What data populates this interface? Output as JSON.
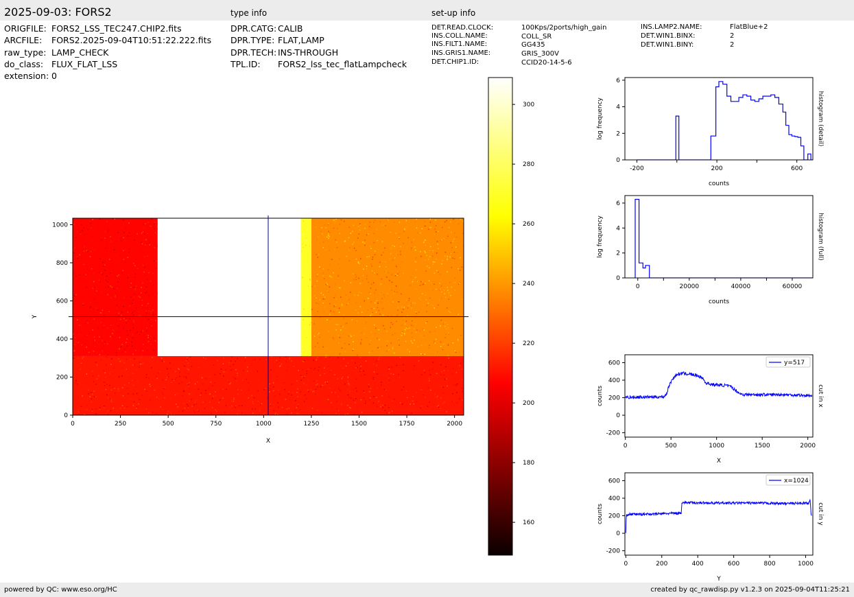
{
  "header": {
    "title": "2025-09-03: FORS2",
    "type_info_label": "type info",
    "setup_info_label": "set-up info"
  },
  "file_info": [
    {
      "key": "ORIGFILE:",
      "value": "FORS2_LSS_TEC247.CHIP2.fits"
    },
    {
      "key": "ARCFILE:",
      "value": "FORS2.2025-09-04T10:51:22.222.fits"
    },
    {
      "key": "raw_type:",
      "value": "LAMP_CHECK"
    },
    {
      "key": "do_class:",
      "value": "FLUX_FLAT_LSS"
    },
    {
      "key": "extension:",
      "value": "0"
    }
  ],
  "type_info": [
    {
      "key": "DPR.CATG:",
      "value": "CALIB"
    },
    {
      "key": "DPR.TYPE:",
      "value": "FLAT,LAMP"
    },
    {
      "key": "DPR.TECH:",
      "value": "INS-THROUGH"
    },
    {
      "key": "TPL.ID:",
      "value": "FORS2_lss_tec_flatLampcheck"
    }
  ],
  "setup_info_col1": [
    {
      "key": "DET.READ.CLOCK:",
      "value": "100Kps/2ports/high_gain"
    },
    {
      "key": "INS.COLL.NAME:",
      "value": "COLL_SR"
    },
    {
      "key": "INS.FILT1.NAME:",
      "value": "GG435"
    },
    {
      "key": "INS.GRIS1.NAME:",
      "value": "GRIS_300V"
    },
    {
      "key": "DET.CHIP1.ID:",
      "value": "CCID20-14-5-6"
    }
  ],
  "setup_info_col2": [
    {
      "key": "INS.LAMP2.NAME:",
      "value": "FlatBlue+2"
    },
    {
      "key": "DET.WIN1.BINX:",
      "value": "2"
    },
    {
      "key": "DET.WIN1.BINY:",
      "value": "2"
    }
  ],
  "footer": {
    "left": "powered by QC: www.eso.org/HC",
    "right": "created by qc_rawdisp.py v1.2.3 on 2025-09-04T11:25:21"
  },
  "colors": {
    "bar_bg": "#ececec",
    "line": "#0000ff",
    "crosshair": "#00008b"
  },
  "chart_data": [
    {
      "type": "heatmap",
      "name": "image",
      "colormap": "hot",
      "xlabel": "X",
      "ylabel": "Y",
      "xlim": [
        0,
        2048
      ],
      "ylim": [
        0,
        1034
      ],
      "xticks": [
        0,
        250,
        500,
        750,
        1000,
        1250,
        1500,
        1750,
        2000
      ],
      "yticks": [
        0,
        200,
        400,
        600,
        800,
        1000
      ],
      "crosshair": {
        "x": 1024,
        "y": 517
      },
      "regions": [
        {
          "x0": 0,
          "x1": 445,
          "y0": 310,
          "y1": 1034,
          "level": 208
        },
        {
          "x0": 445,
          "x1": 1195,
          "y0": 310,
          "y1": 1034,
          "level": 400
        },
        {
          "x0": 1195,
          "x1": 1250,
          "y0": 310,
          "y1": 1034,
          "level": 270
        },
        {
          "x0": 1250,
          "x1": 2048,
          "y0": 310,
          "y1": 1034,
          "level": 238
        },
        {
          "x0": 0,
          "x1": 2048,
          "y0": 0,
          "y1": 310,
          "level": 212
        }
      ]
    },
    {
      "type": "colorbar",
      "name": "colorbar",
      "range": [
        149,
        309
      ],
      "ticks": [
        160,
        180,
        200,
        220,
        240,
        260,
        280,
        300
      ]
    },
    {
      "type": "line",
      "name": "histogram-detail",
      "title": "histogram (detail)",
      "xlabel": "counts",
      "ylabel": "log frequency",
      "xlim": [
        -260,
        680
      ],
      "ylim": [
        0,
        6.2
      ],
      "xticks": [
        -200,
        0,
        200,
        400,
        600
      ],
      "xticklabels": [
        "-200",
        "",
        "200",
        "",
        "600"
      ],
      "yticks": [
        0,
        2,
        4,
        6
      ],
      "steps": [
        [
          -200,
          0
        ],
        [
          -5,
          3.3
        ],
        [
          10,
          0
        ],
        [
          170,
          1.8
        ],
        [
          195,
          5.5
        ],
        [
          210,
          5.9
        ],
        [
          230,
          5.7
        ],
        [
          250,
          4.8
        ],
        [
          270,
          4.4
        ],
        [
          290,
          4.4
        ],
        [
          310,
          4.7
        ],
        [
          330,
          4.9
        ],
        [
          350,
          4.8
        ],
        [
          370,
          4.5
        ],
        [
          390,
          4.4
        ],
        [
          410,
          4.6
        ],
        [
          430,
          4.8
        ],
        [
          450,
          4.8
        ],
        [
          470,
          4.9
        ],
        [
          490,
          4.7
        ],
        [
          510,
          4.2
        ],
        [
          530,
          3.6
        ],
        [
          545,
          2.6
        ],
        [
          560,
          1.9
        ],
        [
          575,
          1.8
        ],
        [
          590,
          1.75
        ],
        [
          605,
          1.7
        ],
        [
          620,
          1.05
        ],
        [
          635,
          0
        ],
        [
          655,
          0.45
        ],
        [
          670,
          0
        ],
        [
          685,
          1.6
        ]
      ]
    },
    {
      "type": "line",
      "name": "histogram-full",
      "title": "histogram (full)",
      "xlabel": "counts",
      "ylabel": "log frequency",
      "xlim": [
        -5000,
        68000
      ],
      "ylim": [
        0,
        6.6
      ],
      "xticks": [
        0,
        10000,
        20000,
        30000,
        40000,
        50000,
        60000
      ],
      "xticklabels": [
        "0",
        "",
        "20000",
        "",
        "40000",
        "",
        "60000"
      ],
      "yticks": [
        0,
        2,
        4,
        6
      ],
      "steps": [
        [
          -1000,
          0
        ],
        [
          -1000,
          6.3
        ],
        [
          500,
          6.3
        ],
        [
          500,
          1.2
        ],
        [
          2000,
          1.2
        ],
        [
          2000,
          0.8
        ],
        [
          3000,
          0.8
        ],
        [
          3000,
          1.0
        ],
        [
          4500,
          1.0
        ],
        [
          4500,
          0
        ],
        [
          68000,
          0
        ]
      ]
    },
    {
      "type": "line",
      "name": "cut-in-x",
      "title": "cut in x",
      "legend": "y=517",
      "xlabel": "X",
      "ylabel": "counts",
      "xlim": [
        -5,
        2055
      ],
      "ylim": [
        -250,
        690
      ],
      "xticks": [
        0,
        500,
        1000,
        1500,
        2000
      ],
      "yticks": [
        -200,
        0,
        200,
        400,
        600
      ],
      "profile": [
        [
          0,
          205
        ],
        [
          420,
          210
        ],
        [
          450,
          240
        ],
        [
          480,
          340
        ],
        [
          520,
          420
        ],
        [
          560,
          460
        ],
        [
          620,
          480
        ],
        [
          700,
          470
        ],
        [
          800,
          450
        ],
        [
          850,
          420
        ],
        [
          880,
          370
        ],
        [
          950,
          350
        ],
        [
          1100,
          340
        ],
        [
          1170,
          320
        ],
        [
          1200,
          290
        ],
        [
          1260,
          245
        ],
        [
          1300,
          235
        ],
        [
          1500,
          235
        ],
        [
          1700,
          235
        ],
        [
          1900,
          230
        ],
        [
          2048,
          220
        ]
      ],
      "noise": 18
    },
    {
      "type": "line",
      "name": "cut-in-y",
      "title": "cut in y",
      "legend": "x=1024",
      "xlabel": "Y",
      "ylabel": "counts",
      "xlim": [
        -5,
        1040
      ],
      "ylim": [
        -250,
        690
      ],
      "xticks": [
        0,
        200,
        400,
        600,
        800,
        1000
      ],
      "yticks": [
        -200,
        0,
        200,
        400,
        600
      ],
      "profile": [
        [
          0,
          0
        ],
        [
          3,
          200
        ],
        [
          10,
          215
        ],
        [
          150,
          220
        ],
        [
          300,
          230
        ],
        [
          308,
          235
        ],
        [
          312,
          350
        ],
        [
          500,
          345
        ],
        [
          700,
          345
        ],
        [
          900,
          340
        ],
        [
          1020,
          345
        ],
        [
          1025,
          380
        ],
        [
          1030,
          220
        ],
        [
          1034,
          210
        ]
      ],
      "noise": 14
    }
  ]
}
